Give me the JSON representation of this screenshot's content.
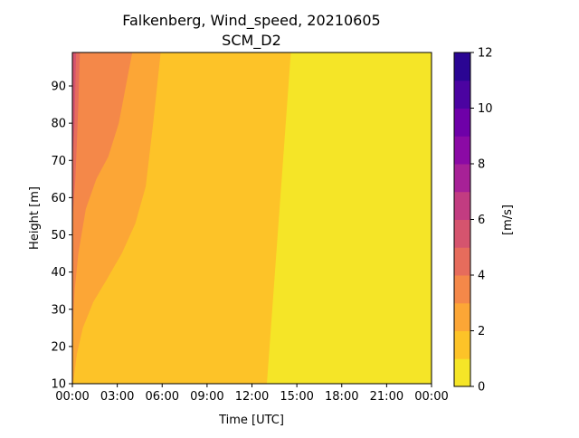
{
  "chart_data": {
    "type": "filled-contour",
    "title": "Falkenberg, Wind_speed, 20210605",
    "subtitle": "SCM_D2",
    "xlabel": "Time [UTC]",
    "ylabel": "Height [m]",
    "x_tick_labels": [
      "00:00",
      "03:00",
      "06:00",
      "09:00",
      "12:00",
      "15:00",
      "18:00",
      "21:00",
      "00:00"
    ],
    "x_range_hours": [
      0,
      24
    ],
    "y_range": [
      10,
      99
    ],
    "y_ticks": [
      10,
      20,
      30,
      40,
      50,
      60,
      70,
      80,
      90
    ],
    "colorbar": {
      "label": "[m/s]",
      "range": [
        0,
        12
      ],
      "ticks": [
        0,
        2,
        4,
        6,
        8,
        10,
        12
      ],
      "levels": [
        0,
        1,
        2,
        3,
        4,
        5,
        6,
        7,
        8,
        9,
        10,
        11,
        12
      ],
      "colors": [
        "#f5e527",
        "#fdc328",
        "#fca636",
        "#f48849",
        "#e66c5c",
        "#d5546e",
        "#c23c81",
        "#a72197",
        "#8b0aa5",
        "#6e00a8",
        "#4b03a1",
        "#2a0593"
      ]
    },
    "contour_regions": [
      {
        "level_range": [
          0,
          1
        ],
        "note": "right side, from ~13:00-14:30 to 24:00"
      },
      {
        "level_range": [
          1,
          2
        ],
        "bounds": [
          [
            13.0,
            10
          ],
          [
            14.6,
            99
          ]
        ],
        "points": [
          [
            0.6,
            10
          ],
          [
            1.5,
            15
          ],
          [
            2.5,
            19
          ],
          [
            4.0,
            24
          ],
          [
            4.8,
            29
          ],
          [
            5.0,
            35
          ],
          [
            5.6,
            41
          ],
          [
            6.2,
            50
          ],
          [
            6.8,
            70
          ],
          [
            6.7,
            80
          ],
          [
            7.1,
            90
          ],
          [
            7.1,
            99
          ]
        ]
      },
      {
        "level_range": [
          2,
          3
        ],
        "points": [
          [
            0.05,
            10
          ],
          [
            0.3,
            18
          ],
          [
            0.7,
            25
          ],
          [
            1.4,
            32
          ],
          [
            2.3,
            38
          ],
          [
            3.3,
            45
          ],
          [
            4.2,
            53
          ],
          [
            4.9,
            63
          ],
          [
            5.4,
            80
          ],
          [
            5.9,
            99
          ]
        ]
      },
      {
        "level_range": [
          3,
          4
        ],
        "points": [
          [
            0.05,
            27
          ],
          [
            0.15,
            35
          ],
          [
            0.4,
            45
          ],
          [
            0.9,
            57
          ],
          [
            1.6,
            65
          ],
          [
            2.4,
            71
          ],
          [
            3.1,
            80
          ],
          [
            4.0,
            99
          ]
        ]
      },
      {
        "level_range": [
          4,
          5
        ],
        "points": [
          [
            0.02,
            55
          ],
          [
            0.2,
            65
          ],
          [
            0.3,
            75
          ],
          [
            0.4,
            85
          ],
          [
            0.5,
            99
          ]
        ]
      }
    ]
  }
}
